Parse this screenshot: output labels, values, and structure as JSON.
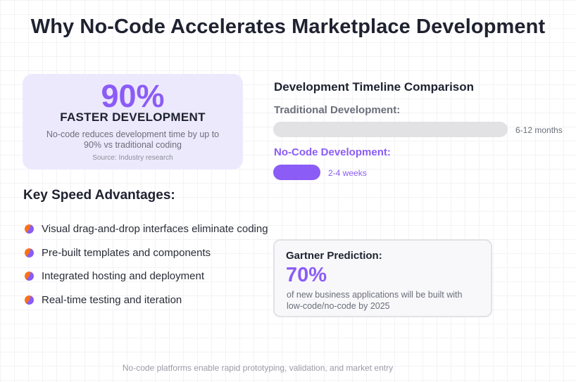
{
  "title": "Why No-Code Accelerates Marketplace Development",
  "stat": {
    "value": "90%",
    "label": "FASTER DEVELOPMENT",
    "description": "No-code reduces development time by up to 90% vs traditional coding",
    "source": "Source: Industry research"
  },
  "timeline": {
    "title": "Development Timeline Comparison",
    "traditional": {
      "label": "Traditional Development:",
      "value": "6-12 months",
      "relative_length": 1.0
    },
    "nocode": {
      "label": "No-Code Development:",
      "value": "2-4 weeks",
      "relative_length": 0.2
    }
  },
  "advantages": {
    "title": "Key Speed Advantages:",
    "items": [
      "Visual drag-and-drop interfaces eliminate coding",
      "Pre-built templates and components",
      "Integrated hosting and deployment",
      "Real-time testing and iteration"
    ]
  },
  "prediction": {
    "label": "Gartner Prediction:",
    "value": "70%",
    "description": "of new business applications will be built with low-code/no-code by 2025"
  },
  "footer": "No-code platforms enable rapid prototyping, validation, and market entry",
  "colors": {
    "accent": "#8b5cf6",
    "bullet_secondary": "#f97316",
    "card_background": "#ede9fd",
    "bar_neutral": "#e2e2e4"
  }
}
